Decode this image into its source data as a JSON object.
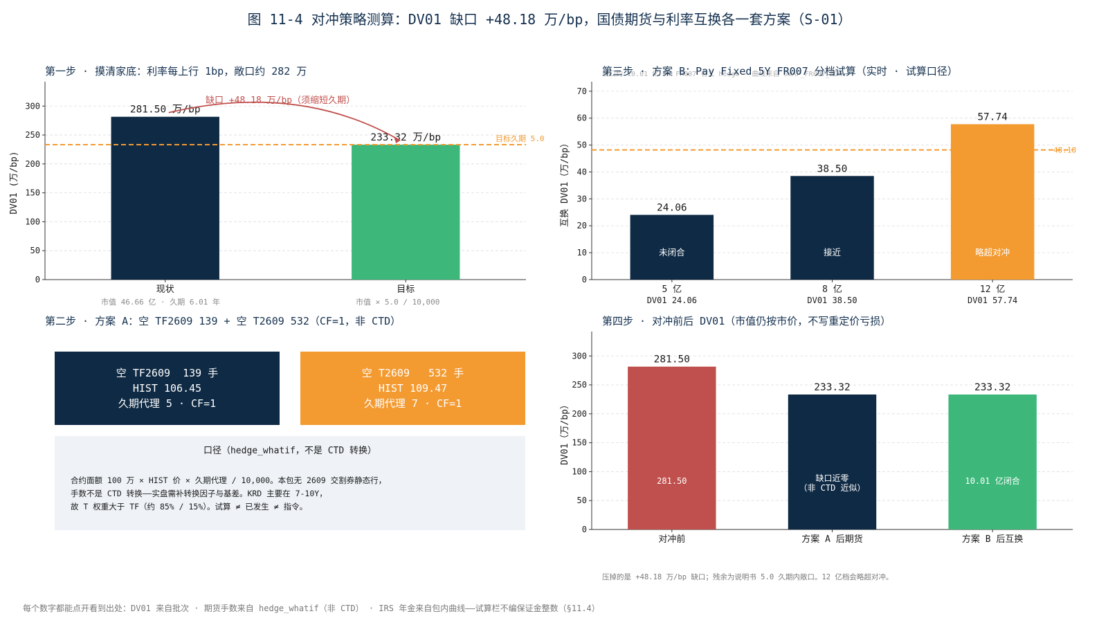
{
  "title": "图 11-4 对冲策略测算：DV01 缺口 +48.18 万/bp，国债期货与利率互换各一套方案（S-01）",
  "panel1": {
    "title": "第一步 · 摸清家底：利率每上行 1bp，敞口约 282 万",
    "gap_annotation": "缺口 +48.18 万/bp（须缩短久期）",
    "target_line_label": "目标久期 5.0",
    "subcaptions": [
      "市值 46.66 亿 · 久期 6.01 年",
      "市值 × 5.0 / 10,000"
    ]
  },
  "panel2": {
    "title": "第二步 · 方案 A：空 TF2609 139 + 空 T2609 532（CF=1，非 CTD）",
    "box_tf": {
      "line1": "空 TF2609  139 手",
      "line2": "HIST 106.45",
      "line3": "久期代理 5 · CF=1",
      "color": "#0f2a44"
    },
    "box_t": {
      "line1": "空 T2609   532 手",
      "line2": "HIST 109.47",
      "line3": "久期代理 7 · CF=1",
      "color": "#f39a31"
    },
    "note_title": "口径（hedge_whatif，不是 CTD 转换）",
    "note_lines": [
      "合约面额 100 万 × HIST 价 × 久期代理 / 10,000。本包无 2609 交割券静态行，",
      "手数不是 CTD 转换——实盘需补转换因子与基差。KRD 主要在 7-10Y，",
      "故 T 权重大于 TF（约 85% / 15%）。试算 ≠ 已发生 ≠ 指令。"
    ]
  },
  "panel3": {
    "title": "第三步 · 方案 B：Pay Fixed 5Y FR007 分档试算（实时 · 试算口径）",
    "ghost_text": "缺口约 10.01 亿 5Y FR007 名义 hedge · 曲线来自 SWAP_FR007_BGN",
    "gap_line_label": "48.18",
    "bar_notes": [
      "未闭合",
      "接近",
      "略超对冲"
    ]
  },
  "panel4": {
    "title": "第四步 · 对冲前后 DV01（市值仍按市价，不写重定价亏损）",
    "inner_labels": [
      "281.50",
      "缺口近零\n（非 CTD 近似）",
      "10.01 亿闭合"
    ],
    "footnote": "压掉的是 +48.18 万/bp 缺口；残余为说明书 5.0 久期内敞口。12 亿档会略超对冲。"
  },
  "footer": "每个数字都能点开看到出处：DV01 来自批次 · 期货手数来自 hedge_whatif（非 CTD） · IRS 年金来自包内曲线——试算栏不编保证金整数（§11.4）",
  "chart_data": [
    {
      "type": "bar",
      "title": "第一步 · 摸清家底：利率每上行 1bp，敞口约 282 万",
      "categories": [
        "现状",
        "目标"
      ],
      "values": [
        281.5,
        233.32
      ],
      "value_labels": [
        "281.50 万/bp",
        "233.32 万/bp"
      ],
      "colors": [
        "#0f2a44",
        "#3db87a"
      ],
      "ylabel": "DV01 (万/bp)",
      "ylim": [
        0,
        335
      ],
      "yticks": [
        0,
        50,
        100,
        150,
        200,
        250,
        300
      ],
      "reference_line": {
        "value": 233.32,
        "label": "目标久期 5.0",
        "color": "#f39a31"
      },
      "grid": true
    },
    {
      "type": "bar",
      "title": "第三步 · 方案 B：Pay Fixed 5Y FR007 分档试算（实时 · 试算口径）",
      "categories": [
        "5 亿",
        "8 亿",
        "12 亿"
      ],
      "sub_categories": [
        "DV01 24.06",
        "DV01 38.50",
        "DV01 57.74"
      ],
      "values": [
        24.06,
        38.5,
        57.74
      ],
      "value_labels": [
        "24.06",
        "38.50",
        "57.74"
      ],
      "colors": [
        "#0f2a44",
        "#0f2a44",
        "#f39a31"
      ],
      "ylabel": "互换 DV01（万/bp）",
      "ylim": [
        0,
        72
      ],
      "yticks": [
        0,
        10,
        20,
        30,
        40,
        50,
        60,
        70
      ],
      "reference_line": {
        "value": 48.18,
        "label": "48.18",
        "color": "#f39a31"
      },
      "grid": true
    },
    {
      "type": "bar",
      "title": "第四步 · 对冲前后 DV01（市值仍按市价，不写重定价亏损）",
      "categories": [
        "对冲前",
        "方案 A 后期货",
        "方案 B 后互换"
      ],
      "values": [
        281.5,
        233.32,
        233.32
      ],
      "value_labels": [
        "281.50",
        "233.32",
        "233.32"
      ],
      "colors": [
        "#c0504d",
        "#0f2a44",
        "#3db87a"
      ],
      "ylabel": "DV01（万/bp）",
      "ylim": [
        0,
        335
      ],
      "yticks": [
        0,
        50,
        100,
        150,
        200,
        250,
        300
      ],
      "grid": true
    }
  ]
}
